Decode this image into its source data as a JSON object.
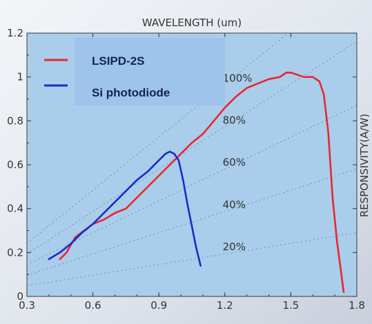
{
  "chart_data": {
    "type": "line",
    "x_axis_label": "WAVELENGTH (um)",
    "y_axis_label": "RESPONSIVITY(A/W)",
    "xlim": [
      0.3,
      1.8
    ],
    "ylim": [
      0,
      1.2
    ],
    "x_ticks": [
      "0.3",
      "0.6",
      "0.9",
      "1.2",
      "1.5",
      "1.8"
    ],
    "y_ticks": [
      "0",
      "0.2",
      "0.4",
      "0.6",
      "0.8",
      "1",
      "1.2"
    ],
    "grid": false,
    "legend_position": "top-left",
    "quantum_efficiency_lines": [
      {
        "label": "20%",
        "efficiency": 0.2
      },
      {
        "label": "40%",
        "efficiency": 0.4
      },
      {
        "label": "60%",
        "efficiency": 0.6
      },
      {
        "label": "80%",
        "efficiency": 0.8
      },
      {
        "label": "100%",
        "efficiency": 1.0
      }
    ],
    "series": [
      {
        "name": "LSIPD-2S",
        "color": "#e8262f",
        "points": [
          [
            0.45,
            0.17
          ],
          [
            0.48,
            0.2
          ],
          [
            0.52,
            0.27
          ],
          [
            0.56,
            0.3
          ],
          [
            0.6,
            0.33
          ],
          [
            0.65,
            0.35
          ],
          [
            0.7,
            0.38
          ],
          [
            0.75,
            0.4
          ],
          [
            0.8,
            0.45
          ],
          [
            0.85,
            0.5
          ],
          [
            0.9,
            0.55
          ],
          [
            0.95,
            0.6
          ],
          [
            1.0,
            0.65
          ],
          [
            1.05,
            0.7
          ],
          [
            1.1,
            0.74
          ],
          [
            1.15,
            0.8
          ],
          [
            1.2,
            0.86
          ],
          [
            1.25,
            0.91
          ],
          [
            1.3,
            0.95
          ],
          [
            1.35,
            0.97
          ],
          [
            1.4,
            0.99
          ],
          [
            1.45,
            1.0
          ],
          [
            1.48,
            1.02
          ],
          [
            1.5,
            1.02
          ],
          [
            1.53,
            1.01
          ],
          [
            1.56,
            1.0
          ],
          [
            1.6,
            1.0
          ],
          [
            1.63,
            0.98
          ],
          [
            1.65,
            0.92
          ],
          [
            1.67,
            0.75
          ],
          [
            1.69,
            0.45
          ],
          [
            1.71,
            0.25
          ],
          [
            1.73,
            0.1
          ],
          [
            1.74,
            0.02
          ]
        ]
      },
      {
        "name": "Si photodiode",
        "color": "#1a2bc4",
        "points": [
          [
            0.4,
            0.17
          ],
          [
            0.45,
            0.2
          ],
          [
            0.5,
            0.24
          ],
          [
            0.55,
            0.29
          ],
          [
            0.6,
            0.33
          ],
          [
            0.65,
            0.38
          ],
          [
            0.7,
            0.43
          ],
          [
            0.75,
            0.48
          ],
          [
            0.8,
            0.53
          ],
          [
            0.85,
            0.57
          ],
          [
            0.9,
            0.62
          ],
          [
            0.93,
            0.65
          ],
          [
            0.95,
            0.66
          ],
          [
            0.97,
            0.65
          ],
          [
            0.99,
            0.62
          ],
          [
            1.01,
            0.53
          ],
          [
            1.03,
            0.42
          ],
          [
            1.05,
            0.32
          ],
          [
            1.07,
            0.22
          ],
          [
            1.09,
            0.14
          ]
        ]
      }
    ]
  }
}
